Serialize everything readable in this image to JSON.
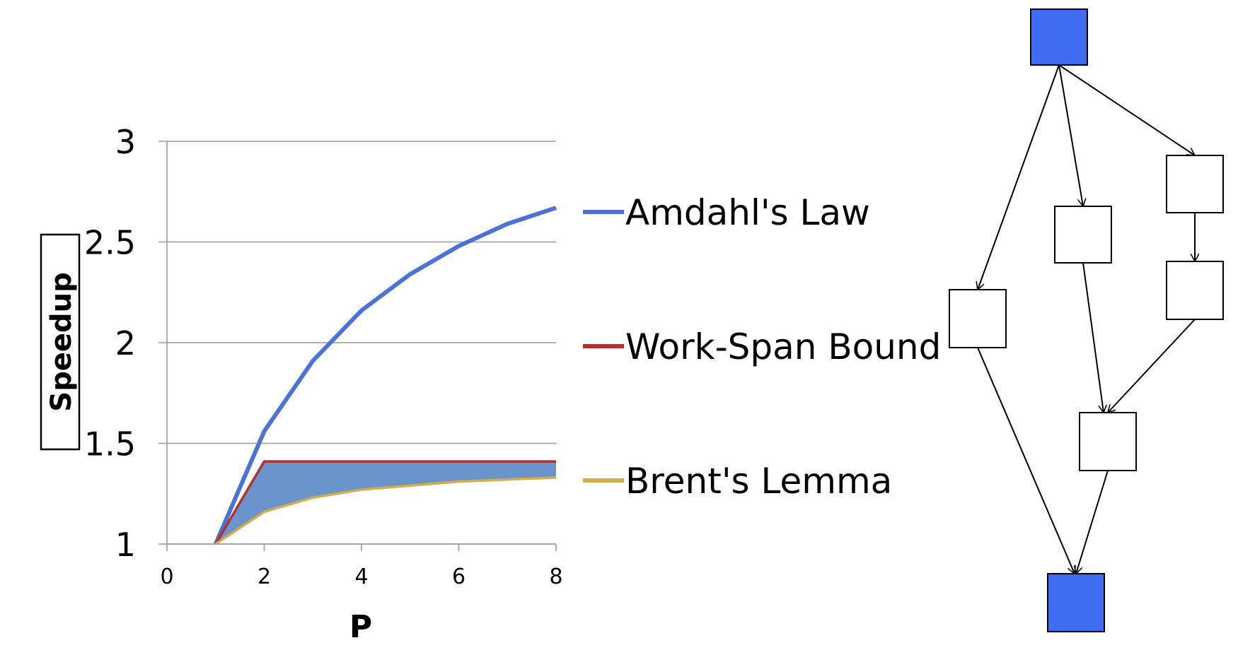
{
  "chart_data": {
    "type": "line",
    "xlabel": "P",
    "ylabel": "Speedup",
    "xlim": [
      0,
      8
    ],
    "ylim": [
      1,
      3
    ],
    "x_ticks": [
      "0",
      "2",
      "4",
      "6",
      "8"
    ],
    "y_ticks": [
      "1",
      "1.5",
      "2",
      "2.5",
      "3"
    ],
    "grid": "horizontal",
    "legend_position": "right",
    "x": [
      1,
      2,
      3,
      4,
      5,
      6,
      7,
      8
    ],
    "series": [
      {
        "name": "Amdahl's Law",
        "color": "#4a72d9",
        "values": [
          1,
          1.56,
          1.91,
          2.16,
          2.34,
          2.48,
          2.59,
          2.67
        ]
      },
      {
        "name": "Work-Span Bound",
        "color": "#b5302b",
        "values": [
          1,
          1.41,
          1.41,
          1.41,
          1.41,
          1.41,
          1.41,
          1.41
        ]
      },
      {
        "name": "Brent's Lemma",
        "color": "#d6ad4c",
        "values": [
          1,
          1.16,
          1.23,
          1.27,
          1.29,
          1.31,
          1.32,
          1.33
        ]
      }
    ],
    "shaded_region": {
      "between": [
        "Work-Span Bound",
        "Brent's Lemma"
      ],
      "color": "#6a95cc"
    }
  },
  "diagram": {
    "node_colors": {
      "endpoint": "#3f6cf0",
      "task": "#ffffff"
    }
  }
}
